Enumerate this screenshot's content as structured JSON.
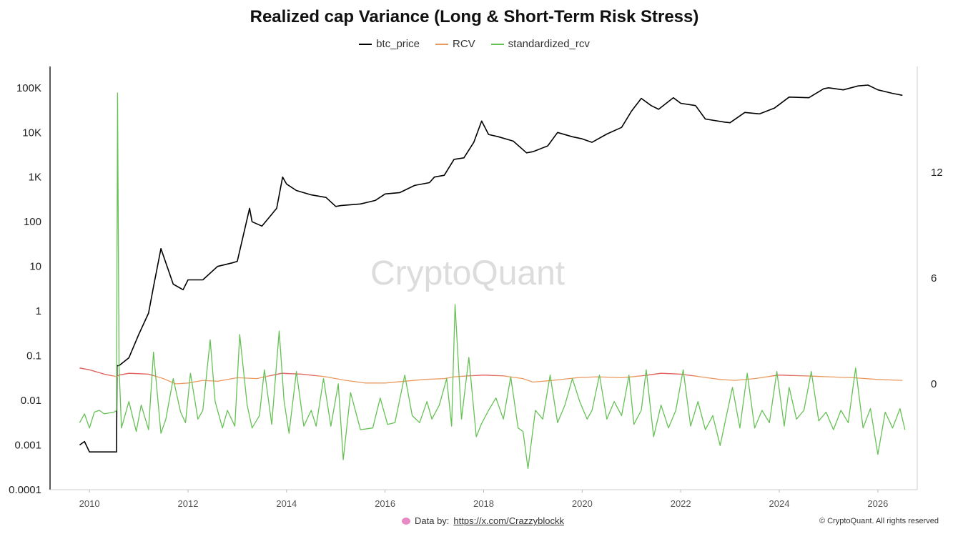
{
  "chart_data": {
    "type": "line",
    "title": "Realized cap Variance (Long & Short-Term Risk Stress)",
    "legend_position": "top-center",
    "grid": false,
    "x_ticks": [
      "2010",
      "2012",
      "2014",
      "2016",
      "2018",
      "2020",
      "2022",
      "2024",
      "2026"
    ],
    "x_range": [
      2009.2,
      2026.8
    ],
    "y_left": {
      "scale": "log",
      "range": [
        0.0001,
        300000
      ],
      "ticks": [
        "100K",
        "10K",
        "1K",
        "100",
        "10",
        "1",
        "0.1",
        "0.01",
        "0.001",
        "0.0001"
      ],
      "tick_values": [
        100000,
        10000,
        1000,
        100,
        10,
        1,
        0.1,
        0.01,
        0.001,
        0.0001
      ]
    },
    "y_right": {
      "scale": "linear",
      "range": [
        -6,
        18
      ],
      "ticks": [
        "12",
        "6",
        "0"
      ],
      "tick_values": [
        12,
        6,
        0
      ]
    },
    "series": [
      {
        "name": "btc_price",
        "axis": "left",
        "color": "#000000",
        "x": [
          2009.8,
          2009.9,
          2010.0,
          2010.2,
          2010.55,
          2010.56,
          2010.6,
          2010.8,
          2011.0,
          2011.2,
          2011.3,
          2011.45,
          2011.7,
          2011.9,
          2012.0,
          2012.3,
          2012.6,
          2012.9,
          2013.0,
          2013.25,
          2013.3,
          2013.5,
          2013.8,
          2013.92,
          2014.0,
          2014.2,
          2014.5,
          2014.8,
          2015.0,
          2015.1,
          2015.5,
          2015.8,
          2016.0,
          2016.3,
          2016.6,
          2016.9,
          2017.0,
          2017.2,
          2017.4,
          2017.6,
          2017.8,
          2017.96,
          2018.1,
          2018.3,
          2018.6,
          2018.87,
          2019.0,
          2019.3,
          2019.5,
          2019.8,
          2020.0,
          2020.2,
          2020.5,
          2020.8,
          2021.0,
          2021.2,
          2021.4,
          2021.55,
          2021.85,
          2022.0,
          2022.3,
          2022.5,
          2022.9,
          2023.0,
          2023.3,
          2023.6,
          2023.9,
          2024.2,
          2024.6,
          2024.9,
          2025.0,
          2025.3,
          2025.6,
          2025.8,
          2026.0,
          2026.3,
          2026.5
        ],
        "values": [
          0.001,
          0.0012,
          0.0007,
          0.0007,
          0.0007,
          0.06,
          0.06,
          0.09,
          0.3,
          0.9,
          3.5,
          25,
          4,
          3,
          5,
          5,
          10,
          12,
          13,
          200,
          100,
          80,
          200,
          1000,
          700,
          500,
          400,
          350,
          220,
          230,
          250,
          300,
          420,
          450,
          650,
          750,
          1000,
          1100,
          2500,
          2700,
          6000,
          18000,
          9000,
          8000,
          6400,
          3500,
          3700,
          5000,
          10000,
          8000,
          7200,
          6000,
          9200,
          13000,
          30000,
          58000,
          40000,
          33000,
          60000,
          45000,
          40000,
          20000,
          17000,
          16500,
          28000,
          26000,
          35000,
          62000,
          60000,
          95000,
          100000,
          90000,
          110000,
          115000,
          90000,
          75000,
          68000
        ]
      },
      {
        "name": "RCV",
        "axis": "right",
        "color": "#ea9a5f",
        "x": [
          2009.8,
          2010.0,
          2010.3,
          2010.56,
          2010.6,
          2010.8,
          2011.2,
          2011.5,
          2011.75,
          2012.0,
          2012.3,
          2012.6,
          2013.0,
          2013.4,
          2013.9,
          2014.3,
          2014.8,
          2015.2,
          2015.6,
          2016.0,
          2016.4,
          2016.8,
          2017.2,
          2017.4,
          2017.7,
          2018.0,
          2018.4,
          2018.8,
          2019.0,
          2019.4,
          2019.9,
          2020.3,
          2020.8,
          2021.2,
          2021.6,
          2022.0,
          2022.4,
          2022.8,
          2023.1,
          2023.5,
          2024.0,
          2024.5,
          2025.0,
          2025.5,
          2026.0,
          2026.5
        ],
        "values": [
          0.9,
          0.8,
          0.55,
          0.4,
          0.5,
          0.6,
          0.55,
          0.3,
          0.0,
          0.05,
          0.2,
          0.15,
          0.35,
          0.3,
          0.6,
          0.55,
          0.4,
          0.2,
          0.05,
          0.05,
          0.15,
          0.25,
          0.3,
          0.4,
          0.45,
          0.5,
          0.45,
          0.3,
          0.1,
          0.2,
          0.35,
          0.4,
          0.35,
          0.45,
          0.6,
          0.55,
          0.4,
          0.25,
          0.2,
          0.3,
          0.5,
          0.45,
          0.4,
          0.35,
          0.25,
          0.2
        ]
      },
      {
        "name": "standardized_rcv",
        "axis": "right",
        "color": "#66c155",
        "x": [
          2009.8,
          2009.9,
          2010.0,
          2010.1,
          2010.2,
          2010.3,
          2010.5,
          2010.55,
          2010.57,
          2010.6,
          2010.65,
          2010.8,
          2010.95,
          2011.05,
          2011.2,
          2011.3,
          2011.45,
          2011.55,
          2011.7,
          2011.85,
          2011.95,
          2012.05,
          2012.2,
          2012.3,
          2012.45,
          2012.55,
          2012.7,
          2012.8,
          2012.95,
          2013.05,
          2013.2,
          2013.3,
          2013.45,
          2013.55,
          2013.7,
          2013.85,
          2013.95,
          2014.05,
          2014.2,
          2014.35,
          2014.5,
          2014.6,
          2014.75,
          2014.9,
          2015.05,
          2015.15,
          2015.3,
          2015.5,
          2015.75,
          2015.9,
          2016.05,
          2016.2,
          2016.4,
          2016.55,
          2016.7,
          2016.85,
          2016.95,
          2017.1,
          2017.25,
          2017.35,
          2017.42,
          2017.55,
          2017.7,
          2017.85,
          2017.95,
          2018.1,
          2018.25,
          2018.4,
          2018.55,
          2018.7,
          2018.8,
          2018.9,
          2019.05,
          2019.2,
          2019.35,
          2019.5,
          2019.65,
          2019.8,
          2019.95,
          2020.1,
          2020.2,
          2020.35,
          2020.5,
          2020.65,
          2020.8,
          2020.95,
          2021.05,
          2021.2,
          2021.3,
          2021.45,
          2021.6,
          2021.75,
          2021.9,
          2022.05,
          2022.2,
          2022.35,
          2022.5,
          2022.65,
          2022.8,
          2022.95,
          2023.05,
          2023.2,
          2023.35,
          2023.5,
          2023.65,
          2023.8,
          2023.95,
          2024.1,
          2024.2,
          2024.35,
          2024.5,
          2024.65,
          2024.8,
          2024.95,
          2025.1,
          2025.25,
          2025.4,
          2025.55,
          2025.7,
          2025.85,
          2026.0,
          2026.15,
          2026.3,
          2026.45,
          2026.55
        ],
        "values": [
          -2.2,
          -1.7,
          -2.5,
          -1.6,
          -1.5,
          -1.7,
          -1.6,
          -1.5,
          16.5,
          1.0,
          -2.5,
          -1.0,
          -2.7,
          -1.2,
          -2.6,
          1.8,
          -2.8,
          -2.0,
          0.3,
          -1.6,
          -2.2,
          0.6,
          -2.0,
          -1.5,
          2.5,
          -1.0,
          -2.5,
          -1.5,
          -2.4,
          2.8,
          -1.2,
          -2.5,
          -1.8,
          0.8,
          -2.3,
          3.0,
          -1.0,
          -2.8,
          0.7,
          -2.4,
          -1.5,
          -2.4,
          0.3,
          -2.4,
          0.0,
          -4.3,
          -0.5,
          -2.6,
          -2.5,
          -0.8,
          -2.3,
          -2.2,
          0.5,
          -1.8,
          -2.2,
          -1.0,
          -2.0,
          -1.2,
          0.3,
          -2.4,
          4.5,
          -2.0,
          1.5,
          -3.0,
          -2.3,
          -1.5,
          -0.8,
          -2.0,
          0.4,
          -2.5,
          -2.7,
          -4.8,
          -1.5,
          -2.0,
          0.5,
          -2.2,
          -1.2,
          0.3,
          -1.0,
          -2.0,
          -1.5,
          0.5,
          -2.0,
          -1.0,
          -1.8,
          0.5,
          -2.3,
          -1.5,
          0.8,
          -3.0,
          -1.2,
          -2.5,
          -1.5,
          0.8,
          -2.4,
          -1.0,
          -2.6,
          -1.8,
          -3.5,
          -1.5,
          -0.2,
          -2.5,
          0.6,
          -2.5,
          -1.5,
          -2.2,
          0.7,
          -2.4,
          -0.2,
          -2.0,
          -1.5,
          0.7,
          -2.1,
          -1.6,
          -2.6,
          -1.5,
          -2.2,
          0.9,
          -2.5,
          -1.4,
          -4.0,
          -1.6,
          -2.5,
          -1.4,
          -2.6
        ]
      }
    ]
  },
  "footer": {
    "data_by_label": "Data by:",
    "data_by_link": "https://x.com/Crazzyblockk",
    "copyright": "© CryptoQuant. All rights reserved"
  },
  "watermark": "CryptoQuant"
}
